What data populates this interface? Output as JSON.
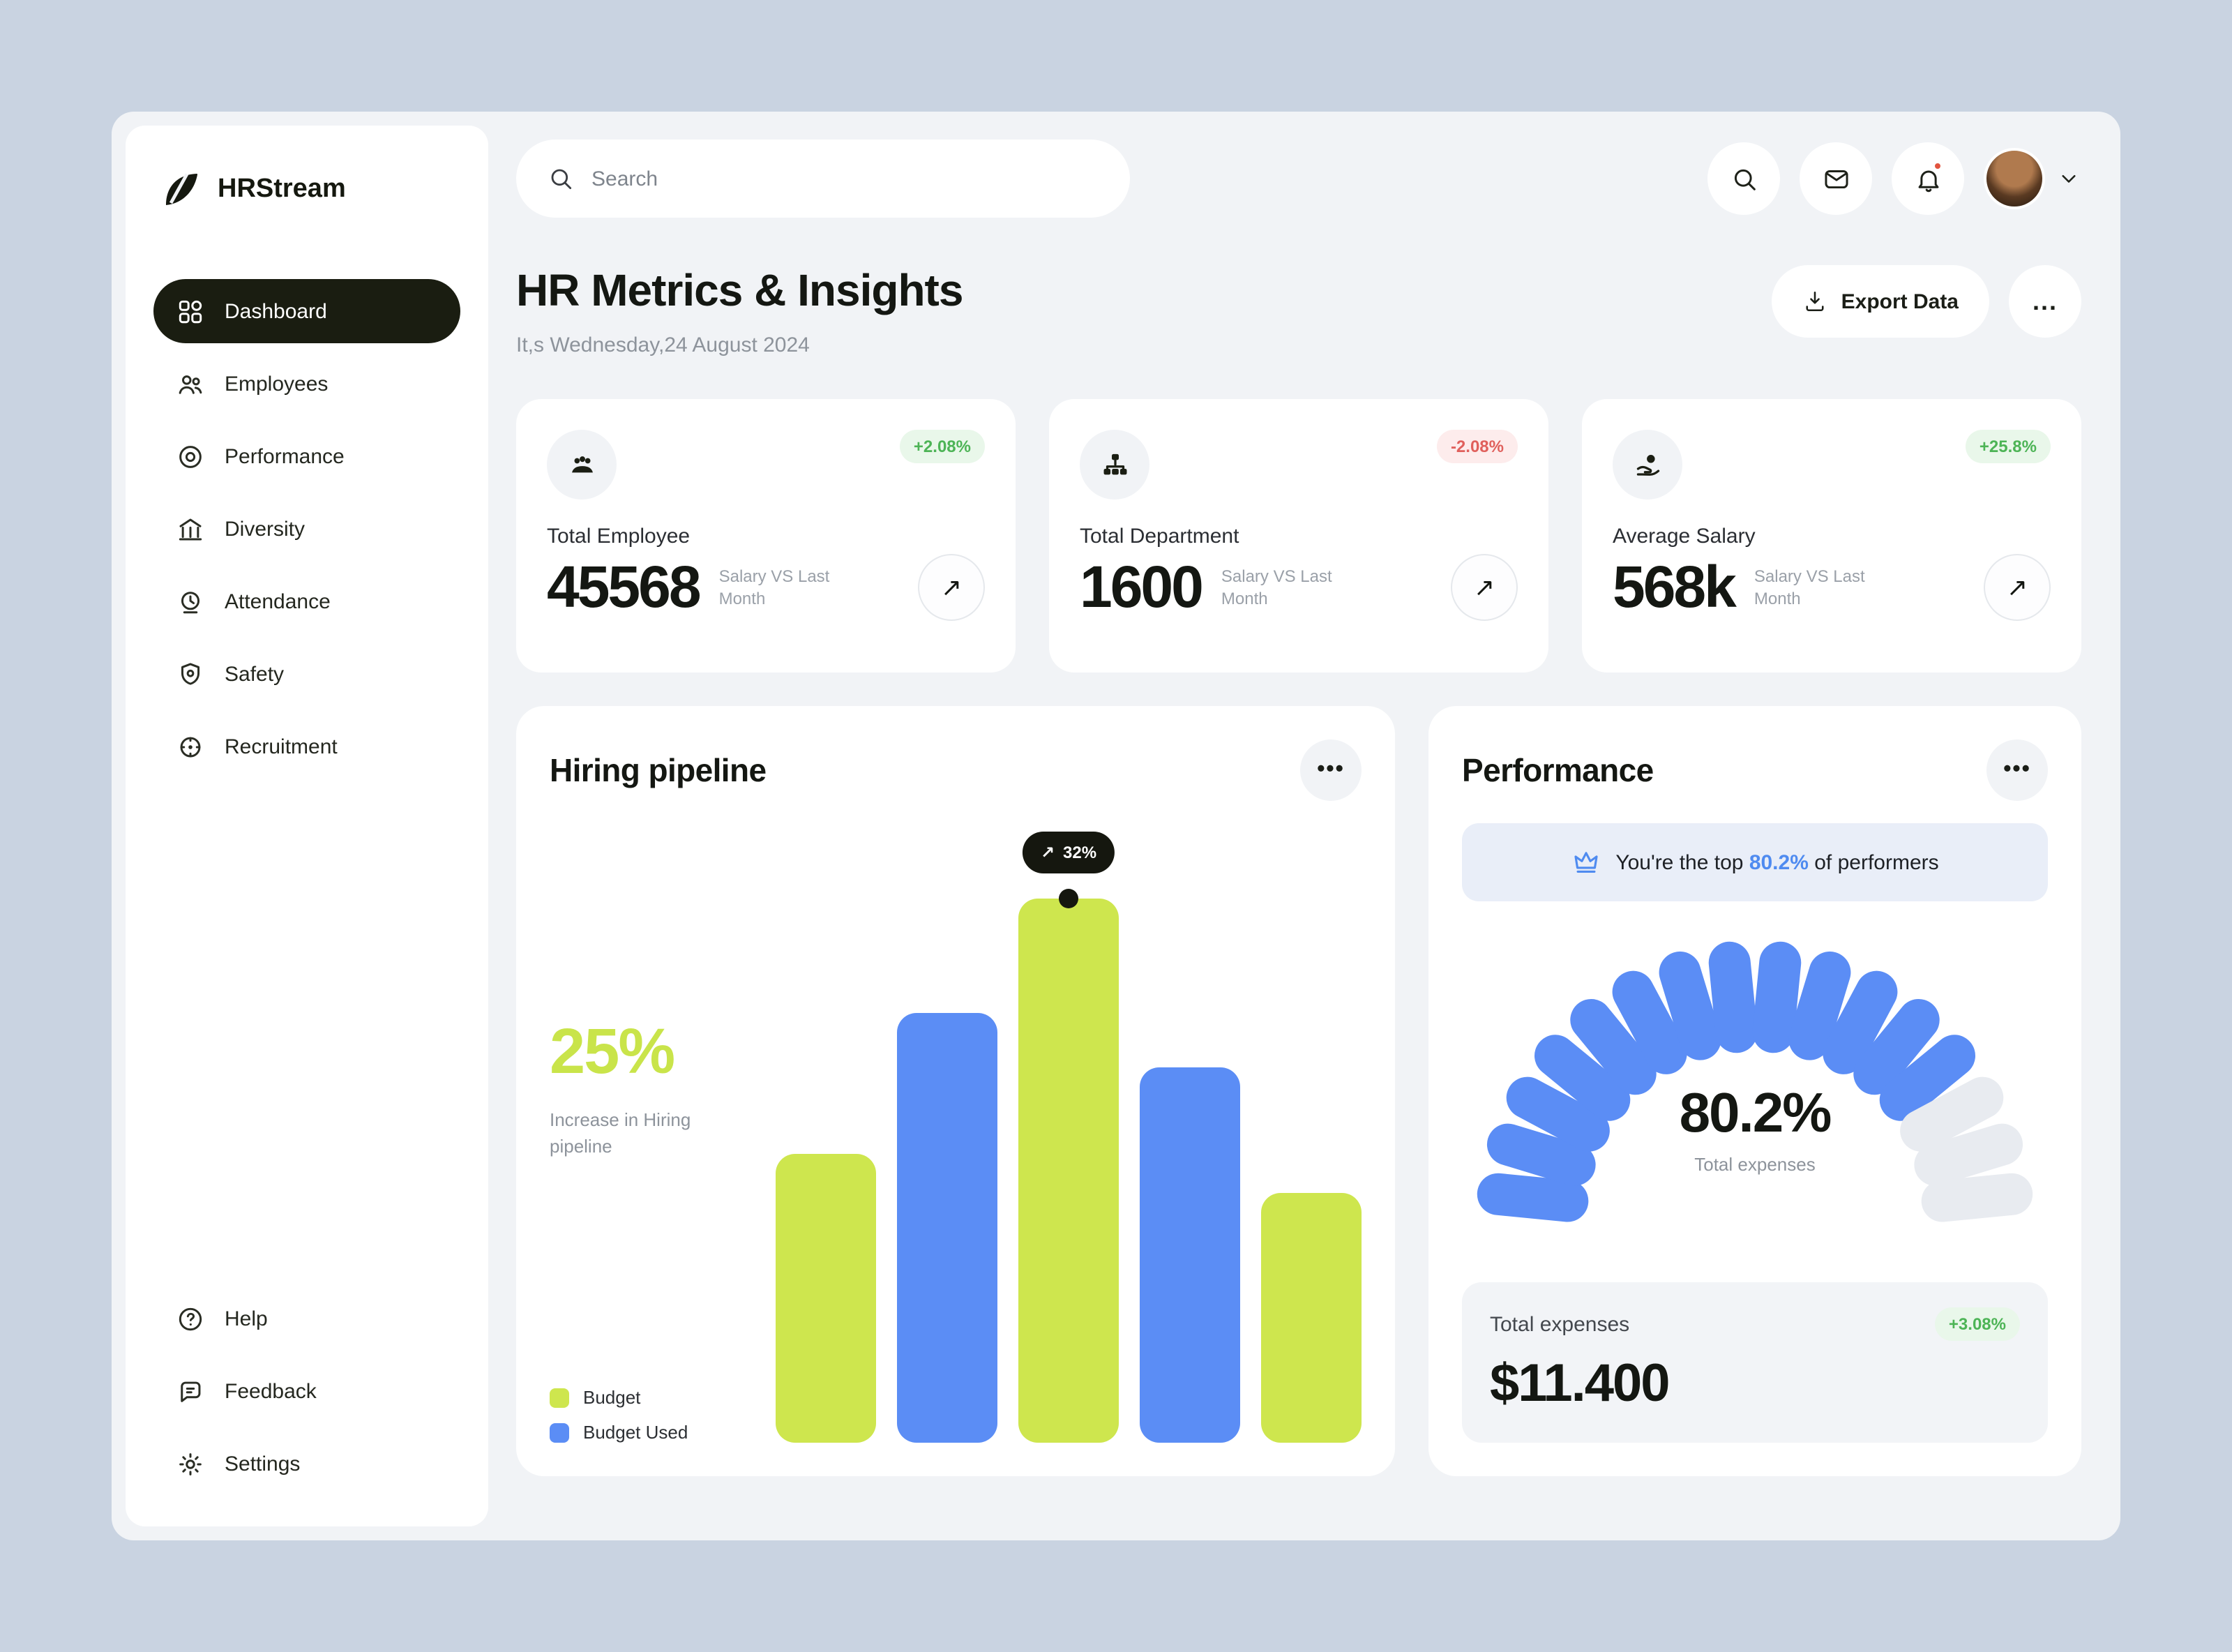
{
  "app": {
    "name": "HRStream"
  },
  "colors": {
    "accent_lime": "#cee64e",
    "accent_blue": "#5b8df5",
    "dark": "#1a1d11",
    "positive": "#4db456",
    "negative": "#e0605c"
  },
  "sidebar": {
    "items": [
      {
        "label": "Dashboard",
        "icon": "dashboard-icon",
        "active": true
      },
      {
        "label": "Employees",
        "icon": "employees-icon",
        "active": false
      },
      {
        "label": "Performance",
        "icon": "performance-icon",
        "active": false
      },
      {
        "label": "Diversity",
        "icon": "diversity-icon",
        "active": false
      },
      {
        "label": "Attendance",
        "icon": "attendance-icon",
        "active": false
      },
      {
        "label": "Safety",
        "icon": "safety-icon",
        "active": false
      },
      {
        "label": "Recruitment",
        "icon": "recruitment-icon",
        "active": false
      }
    ],
    "footer_items": [
      {
        "label": "Help",
        "icon": "help-icon"
      },
      {
        "label": "Feedback",
        "icon": "feedback-icon"
      },
      {
        "label": "Settings",
        "icon": "settings-icon"
      }
    ]
  },
  "topbar": {
    "search_placeholder": "Search",
    "actions": [
      {
        "icon": "search-icon"
      },
      {
        "icon": "mail-icon"
      },
      {
        "icon": "bell-icon",
        "dot": true
      }
    ]
  },
  "header": {
    "title": "HR Metrics & Insights",
    "subtitle": "It,s Wednesday,24 August 2024",
    "export_label": "Export Data",
    "export_icon": "download-icon",
    "more_label": "..."
  },
  "stats": [
    {
      "label": "Total Employee",
      "value": "45568",
      "caption": "Salary VS Last Month",
      "badge": "+2.08%",
      "trend": "up",
      "icon": "group-icon"
    },
    {
      "label": "Total Department",
      "value": "1600",
      "caption": "Salary VS Last Month",
      "badge": "-2.08%",
      "trend": "down",
      "icon": "hierarchy-icon"
    },
    {
      "label": "Average Salary",
      "value": "568k",
      "caption": "Salary VS Last Month",
      "badge": "+25.8%",
      "trend": "up",
      "icon": "hand-coin-icon"
    }
  ],
  "hiring": {
    "title": "Hiring pipeline",
    "highlight": "25%",
    "highlight_caption": "Increase in Hiring pipeline",
    "legend": [
      {
        "label": "Budget",
        "color": "#cee64e"
      },
      {
        "label": "Budget Used",
        "color": "#5b8df5"
      }
    ]
  },
  "performance": {
    "title": "Performance",
    "banner_prefix": "You're the top ",
    "banner_highlight": "80.2%",
    "banner_suffix": " of performers",
    "gauge_value": "80.2%",
    "gauge_caption": "Total expenses",
    "expenses_label": "Total expenses",
    "expenses_badge": "+3.08%",
    "expenses_value": "$11.400"
  },
  "chart_data": [
    {
      "type": "bar",
      "title": "Hiring pipeline",
      "categories": [
        "",
        "",
        "",
        "",
        ""
      ],
      "series": [
        {
          "name": "Hiring pipeline",
          "values": [
            53,
            79,
            100,
            69,
            46
          ]
        }
      ],
      "bar_colors": [
        "#cee64e",
        "#5b8df5",
        "#cee64e",
        "#5b8df5",
        "#cee64e"
      ],
      "annotation": {
        "bar_index": 2,
        "label": "32%"
      },
      "legend": [
        "Budget",
        "Budget Used"
      ],
      "legend_position": "bottom-left",
      "grid": false,
      "ylim": [
        0,
        100
      ]
    },
    {
      "type": "gauge",
      "value": 80.2,
      "max": 100,
      "segments": 16,
      "filled_segments": 13,
      "label": "80.2%",
      "caption": "Total expenses",
      "fill_color": "#5b8df5",
      "track_color": "#e8ebf0"
    }
  ]
}
